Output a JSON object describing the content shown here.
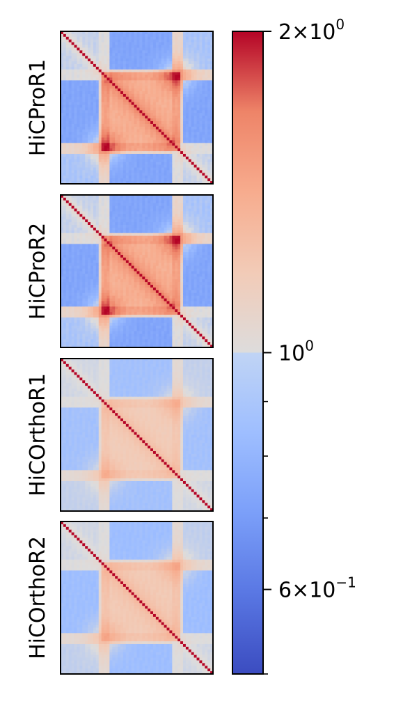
{
  "chart_data": {
    "type": "heatmap",
    "panels": [
      {
        "label": "HiCProR1",
        "contrast": 1.0
      },
      {
        "label": "HiCProR2",
        "contrast": 1.0
      },
      {
        "label": "HiCOrthoR1",
        "contrast": 0.5
      },
      {
        "label": "HiCOrthoR2",
        "contrast": 0.55
      }
    ],
    "colorbar": {
      "colormap": "coolwarm",
      "scale": "log",
      "range": [
        0.5,
        2.0
      ],
      "major_ticks": [
        {
          "value": 2.0,
          "base": "2×10",
          "exp": "0"
        },
        {
          "value": 1.0,
          "base": "10",
          "exp": "0"
        },
        {
          "value": 0.6,
          "base": "6×10",
          "exp": "−1"
        }
      ],
      "minor_ticks": [
        0.9,
        0.8,
        0.7,
        0.5
      ]
    },
    "diagonal_color": "#b40426",
    "grid": false,
    "axis_ticks_on_panels": false
  }
}
